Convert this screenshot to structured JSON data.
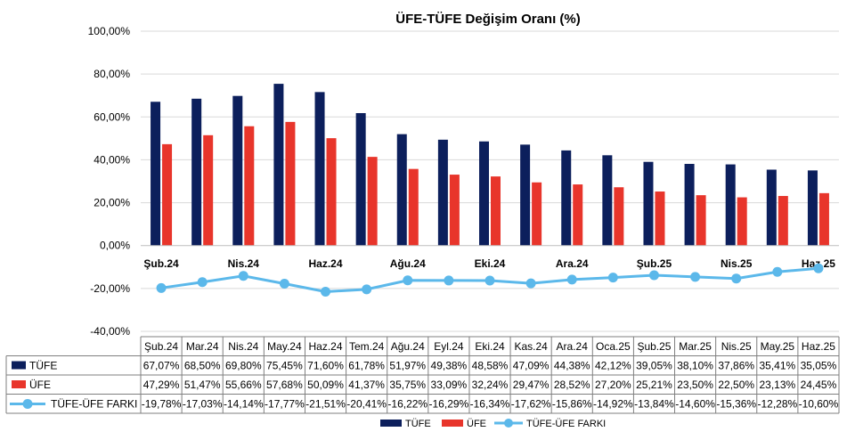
{
  "chart_data": {
    "type": "bar",
    "title": "ÜFE-TÜFE Değişim Oranı (%)",
    "categories": [
      "Şub.24",
      "Mar.24",
      "Nis.24",
      "May.24",
      "Haz.24",
      "Tem.24",
      "Ağu.24",
      "Eyl.24",
      "Eki.24",
      "Kas.24",
      "Ara.24",
      "Oca.25",
      "Şub.25",
      "Mar.25",
      "Nis.25",
      "May.25",
      "Haz.25"
    ],
    "axis_labels": [
      "Şub.24",
      "Nis.24",
      "Haz.24",
      "Ağu.24",
      "Eki.24",
      "Ara.24",
      "Şub.25",
      "Nis.25",
      "Haz.25"
    ],
    "y_ticks": [
      "100,00%",
      "80,00%",
      "60,00%",
      "40,00%",
      "20,00%",
      "0,00%",
      "-20,00%",
      "-40,00%"
    ],
    "ylim": [
      -40,
      100
    ],
    "grid": true,
    "legend_position": "bottom",
    "series": [
      {
        "name": "TÜFE",
        "kind": "bar",
        "color": "#0c1f5c",
        "values": [
          67.07,
          68.5,
          69.8,
          75.45,
          71.6,
          61.78,
          51.97,
          49.38,
          48.58,
          47.09,
          44.38,
          42.12,
          39.05,
          38.1,
          37.86,
          35.41,
          35.05
        ],
        "labels": [
          "67,07%",
          "68,50%",
          "69,80%",
          "75,45%",
          "71,60%",
          "61,78%",
          "51,97%",
          "49,38%",
          "48,58%",
          "47,09%",
          "44,38%",
          "42,12%",
          "39,05%",
          "38,10%",
          "37,86%",
          "35,41%",
          "35,05%"
        ]
      },
      {
        "name": "ÜFE",
        "kind": "bar",
        "color": "#e8352b",
        "values": [
          47.29,
          51.47,
          55.66,
          57.68,
          50.09,
          41.37,
          35.75,
          33.09,
          32.24,
          29.47,
          28.52,
          27.2,
          25.21,
          23.5,
          22.5,
          23.13,
          24.45
        ],
        "labels": [
          "47,29%",
          "51,47%",
          "55,66%",
          "57,68%",
          "50,09%",
          "41,37%",
          "35,75%",
          "33,09%",
          "32,24%",
          "29,47%",
          "28,52%",
          "27,20%",
          "25,21%",
          "23,50%",
          "22,50%",
          "23,13%",
          "24,45%"
        ]
      },
      {
        "name": "TÜFE-ÜFE FARKI",
        "kind": "line",
        "color": "#5bb8ea",
        "values": [
          -19.78,
          -17.03,
          -14.14,
          -17.77,
          -21.51,
          -20.41,
          -16.22,
          -16.29,
          -16.34,
          -17.62,
          -15.86,
          -14.92,
          -13.84,
          -14.6,
          -15.36,
          -12.28,
          -10.6
        ],
        "labels": [
          "-19,78%",
          "-17,03%",
          "-14,14%",
          "-17,77%",
          "-21,51%",
          "-20,41%",
          "-16,22%",
          "-16,29%",
          "-16,34%",
          "-17,62%",
          "-15,86%",
          "-14,92%",
          "-13,84%",
          "-14,60%",
          "-15,36%",
          "-12,28%",
          "-10,60%"
        ]
      }
    ]
  }
}
